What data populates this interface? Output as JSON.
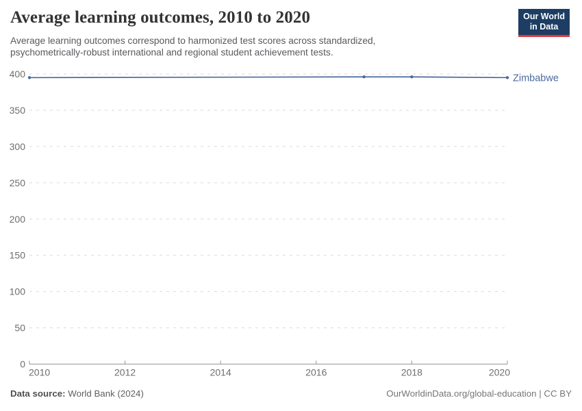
{
  "header": {
    "title": "Average learning outcomes, 2010 to 2020",
    "subtitle": "Average learning outcomes correspond to harmonized test scores across standardized, psychometrically-robust international and regional student achievement tests.",
    "logo": {
      "line1": "Our World",
      "line2": "in Data",
      "bg": "#1d3d63",
      "accent": "#e0383b"
    }
  },
  "chart_data": {
    "type": "line",
    "title": "Average learning outcomes, 2010 to 2020",
    "xlabel": "",
    "ylabel": "",
    "xlim": [
      2010,
      2020
    ],
    "ylim": [
      0,
      400
    ],
    "x_ticks": [
      2010,
      2012,
      2014,
      2016,
      2018,
      2020
    ],
    "y_ticks": [
      0,
      50,
      100,
      150,
      200,
      250,
      300,
      350,
      400
    ],
    "grid": "horizontal-dashed",
    "legend_position": "end-of-line-label",
    "series": [
      {
        "name": "Zimbabwe",
        "color": "#4c6a9c",
        "x": [
          2010,
          2017,
          2018,
          2020
        ],
        "values": [
          395,
          396,
          396,
          395
        ]
      }
    ]
  },
  "footer": {
    "source_label": "Data source:",
    "source_value": "World Bank (2024)",
    "right_text": "OurWorldinData.org/global-education | CC BY"
  },
  "colors": {
    "line": "#4c6a9c",
    "gridline": "#dadada",
    "axis": "#949494",
    "tick_label": "#6e6e6e",
    "title": "#333333",
    "subtitle": "#57595d"
  }
}
